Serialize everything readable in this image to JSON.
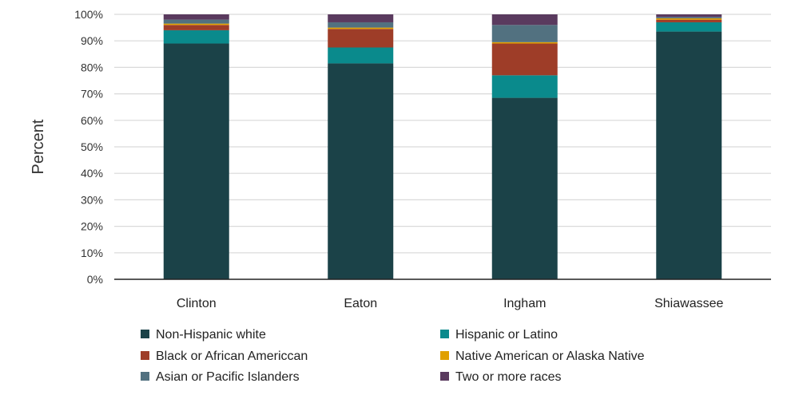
{
  "chart_data": {
    "type": "bar",
    "stacked": true,
    "categories": [
      "Clinton",
      "Eaton",
      "Ingham",
      "Shiawassee"
    ],
    "ylabel": "Percent",
    "ylim": [
      0,
      100
    ],
    "yticks": [
      0,
      10,
      20,
      30,
      40,
      50,
      60,
      70,
      80,
      90,
      100
    ],
    "ytick_labels": [
      "0%",
      "10%",
      "20%",
      "30%",
      "40%",
      "50%",
      "60%",
      "70%",
      "80%",
      "90%",
      "100%"
    ],
    "grid": true,
    "legend_position": "bottom",
    "series": [
      {
        "name": "Non-Hispanic white",
        "color": "#1b4248",
        "values": [
          89,
          81.5,
          68.5,
          93.5
        ]
      },
      {
        "name": "Hispanic or Latino",
        "color": "#0a8a8c",
        "values": [
          5,
          6,
          8.5,
          3.5
        ]
      },
      {
        "name": "Black or African Americcan",
        "color": "#9e3d28",
        "values": [
          2,
          7,
          12,
          1
        ]
      },
      {
        "name": "Native American or Alaska Native",
        "color": "#e0a000",
        "values": [
          0.5,
          0.5,
          0.5,
          0.5
        ]
      },
      {
        "name": "Asian or Pacific Islanders",
        "color": "#527180",
        "values": [
          1.5,
          2,
          6.5,
          0.5
        ]
      },
      {
        "name": "Two or more races",
        "color": "#5a3a5e",
        "values": [
          2,
          3,
          4,
          1
        ]
      }
    ]
  }
}
